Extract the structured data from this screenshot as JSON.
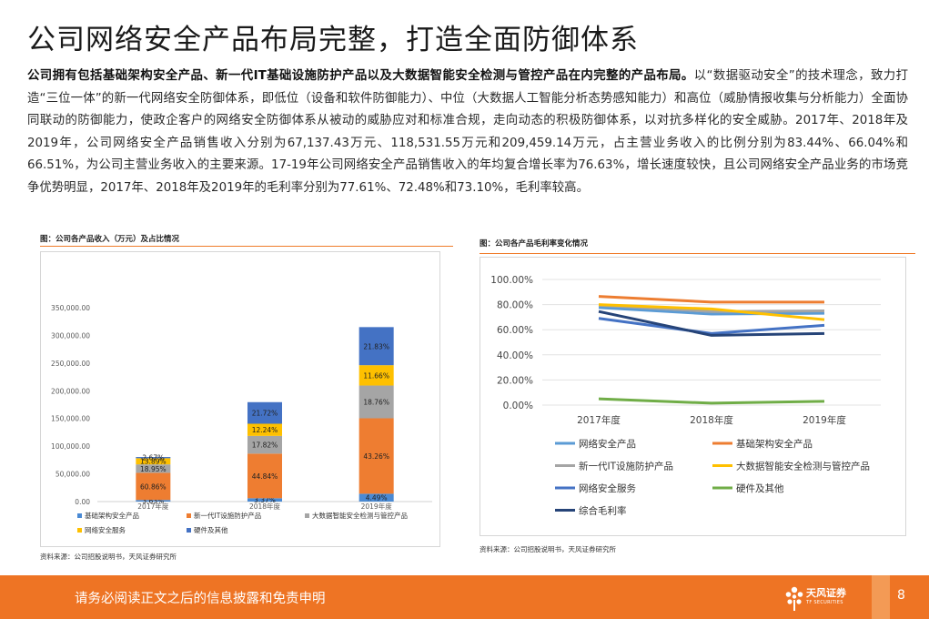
{
  "title": "公司网络安全产品布局完整，打造全面防御体系",
  "paragraph": {
    "lead": "公司拥有包括基础架构安全产品、新一代IT基础设施防护产品以及大数据智能安全检测与管控产品在内完整的产品布局。",
    "rest": "以“数据驱动安全”的技术理念，致力打造“三位一体”的新一代网络安全防御体系，即低位（设备和软件防御能力）、中位（大数据人工智能分析态势感知能力）和高位（威胁情报收集与分析能力）全面协同联动的防御能力，使政企客户的网络安全防御体系从被动的威胁应对和标准合规，走向动态的积极防御体系，以对抗多样化的安全威胁。2017年、2018年及2019年，公司网络安全产品销售收入分别为67,137.43万元、118,531.55万元和209,459.14万元，占主营业务收入的比例分别为83.44%、66.04%和66.51%，为公司主营业务收入的主要来源。17-19年公司网络安全产品销售收入的年均复合增长率为76.63%，增长速度较快，且公司网络安全产品业务的市场竞争优势明显，2017年、2018年及2019年的毛利率分别为77.61%、72.48%和73.10%，毛利率较高。"
  },
  "left_chart": {
    "heading": "图：公司各产品收入（万元）及占比情况",
    "source": "资料来源：公司招股说明书，天风证券研究所"
  },
  "right_chart": {
    "heading": "图：公司各产品毛利率变化情况",
    "source": "资料来源：公司招股说明书，天风证券研究所"
  },
  "chart_data": [
    {
      "type": "bar",
      "stacked": true,
      "categories": [
        "2017年度",
        "2018年度",
        "2019年度"
      ],
      "ylim": [
        0,
        350000
      ],
      "yticks": [
        0,
        50000,
        100000,
        150000,
        200000,
        250000,
        300000,
        350000
      ],
      "ytick_labels": [
        "0.00",
        "50,000.00",
        "100,000.00",
        "150,000.00",
        "200,000.00",
        "250,000.00",
        "300,000.00",
        "350,000.00"
      ],
      "totals": [
        80463,
        179492,
        314932
      ],
      "series": [
        {
          "name": "基础架构安全产品",
          "color": "#4a8ad4",
          "percent": [
            3.63,
            3.37,
            4.49
          ],
          "labels": [
            "3.63%",
            "3.37%",
            "4.49%"
          ]
        },
        {
          "name": "新一代IT设施防护产品",
          "color": "#ee7d31",
          "percent": [
            60.86,
            44.84,
            43.26
          ],
          "labels": [
            "60.86%",
            "44.84%",
            "43.26%"
          ]
        },
        {
          "name": "大数据智能安全检测与管控产品",
          "color": "#a5a5a5",
          "percent": [
            18.95,
            17.82,
            18.76
          ],
          "labels": [
            "18.95%",
            "17.82%",
            "18.76%"
          ]
        },
        {
          "name": "网络安全服务",
          "color": "#fec000",
          "percent": [
            13.89,
            12.24,
            11.66
          ],
          "labels": [
            "13.89%",
            "12.24%",
            "11.66%"
          ]
        },
        {
          "name": "硬件及其他",
          "color": "#4472c4",
          "percent": [
            2.67,
            21.72,
            21.83
          ],
          "labels": [
            "2.67%",
            "21.72%",
            "21.83%"
          ]
        }
      ],
      "legend_position": "bottom"
    },
    {
      "type": "line",
      "categories": [
        "2017年度",
        "2018年度",
        "2019年度"
      ],
      "ylim": [
        0,
        100
      ],
      "yticks": [
        0,
        20,
        40,
        60,
        80,
        100
      ],
      "ytick_labels": [
        "0.00%",
        "20.00%",
        "40.00%",
        "60.00%",
        "80.00%",
        "100.00%"
      ],
      "series": [
        {
          "name": "网络安全产品",
          "color": "#5b9bd5",
          "values": [
            77.61,
            72.48,
            73.1
          ]
        },
        {
          "name": "基础架构安全产品",
          "color": "#ed7d31",
          "values": [
            86.5,
            82.0,
            82.0
          ]
        },
        {
          "name": "新一代IT设施防护产品",
          "color": "#a5a5a5",
          "values": [
            79.5,
            74.5,
            75.0
          ]
        },
        {
          "name": "大数据智能安全检测与管控产品",
          "color": "#ffc000",
          "values": [
            80.0,
            76.5,
            68.0
          ]
        },
        {
          "name": "网络安全服务",
          "color": "#4472c4",
          "values": [
            69.0,
            57.0,
            63.5
          ]
        },
        {
          "name": "硬件及其他",
          "color": "#70ad47",
          "values": [
            5.0,
            1.5,
            3.0
          ]
        },
        {
          "name": "综合毛利率",
          "color": "#264478",
          "values": [
            74.5,
            55.5,
            57.0
          ]
        }
      ],
      "grid": "horizontal",
      "legend_position": "bottom"
    }
  ],
  "footer": {
    "disclaimer": "请务必阅读正文之后的信息披露和免责申明",
    "logo_cn": "天风证券",
    "logo_en": "TF SECURITIES",
    "page": "8",
    "color": "#ee7424"
  }
}
